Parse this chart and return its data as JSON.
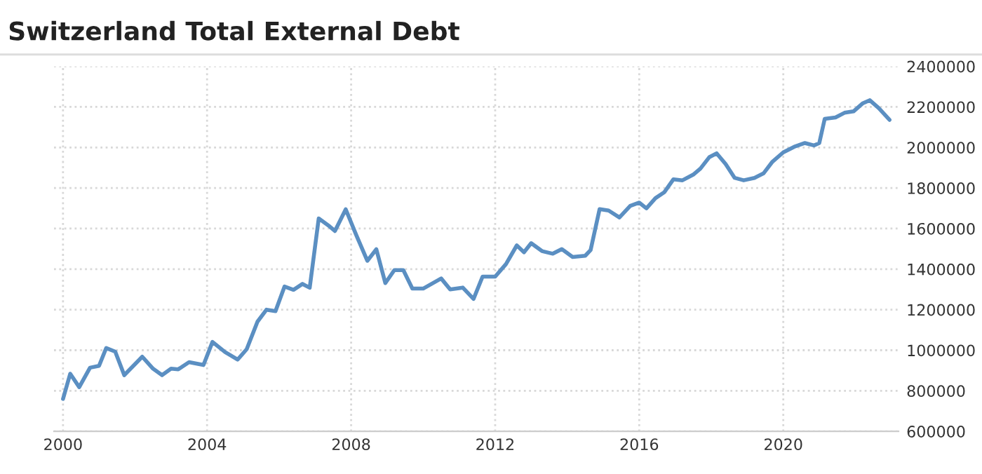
{
  "chart_data": {
    "type": "line",
    "title": "Switzerland Total External Debt",
    "x": [
      2000.0,
      2000.2,
      2000.45,
      2000.75,
      2001.0,
      2001.2,
      2001.45,
      2001.7,
      2002.2,
      2002.5,
      2002.75,
      2003.0,
      2003.2,
      2003.5,
      2003.9,
      2004.15,
      2004.5,
      2004.85,
      2005.1,
      2005.4,
      2005.65,
      2005.9,
      2006.15,
      2006.4,
      2006.65,
      2006.85,
      2007.1,
      2007.4,
      2007.55,
      2007.85,
      2008.15,
      2008.45,
      2008.7,
      2008.95,
      2009.2,
      2009.45,
      2009.7,
      2010.0,
      2010.5,
      2010.75,
      2011.1,
      2011.4,
      2011.65,
      2012.0,
      2012.3,
      2012.6,
      2012.8,
      2013.0,
      2013.3,
      2013.6,
      2013.85,
      2014.15,
      2014.5,
      2014.65,
      2014.9,
      2015.15,
      2015.45,
      2015.75,
      2016.0,
      2016.2,
      2016.45,
      2016.7,
      2016.95,
      2017.2,
      2017.5,
      2017.7,
      2017.95,
      2018.15,
      2018.4,
      2018.65,
      2018.9,
      2019.2,
      2019.45,
      2019.7,
      2020.0,
      2020.3,
      2020.6,
      2020.85,
      2021.0,
      2021.15,
      2021.45,
      2021.7,
      2021.95,
      2022.2,
      2022.4,
      2022.65,
      2022.95
    ],
    "series": [
      {
        "color": "#5b8fc2",
        "values": [
          760000,
          884000,
          818000,
          914000,
          923000,
          1011000,
          993000,
          877000,
          968000,
          909000,
          877000,
          909000,
          906000,
          941000,
          927000,
          1041000,
          991000,
          954000,
          1005000,
          1141000,
          1200000,
          1193000,
          1314000,
          1298000,
          1327000,
          1308000,
          1650000,
          1611000,
          1588000,
          1695000,
          1565000,
          1441000,
          1498000,
          1331000,
          1395000,
          1395000,
          1304000,
          1304000,
          1354000,
          1300000,
          1309000,
          1253000,
          1363000,
          1363000,
          1425000,
          1517000,
          1483000,
          1528000,
          1489000,
          1476000,
          1499000,
          1460000,
          1466000,
          1494000,
          1696000,
          1689000,
          1655000,
          1712000,
          1728000,
          1700000,
          1750000,
          1780000,
          1843000,
          1838000,
          1866000,
          1896000,
          1953000,
          1971000,
          1918000,
          1850000,
          1838000,
          1850000,
          1872000,
          1930000,
          1976000,
          2003000,
          2022000,
          2010000,
          2022000,
          2141000,
          2148000,
          2171000,
          2178000,
          2217000,
          2233000,
          2194000,
          2136000
        ]
      }
    ],
    "xlim": [
      1999.75,
      2023.2
    ],
    "xticks": [
      2000,
      2004,
      2008,
      2012,
      2016,
      2020
    ],
    "ylim": [
      600000,
      2400000
    ],
    "yticks": [
      600000,
      800000,
      1000000,
      1200000,
      1400000,
      1600000,
      1800000,
      2000000,
      2200000,
      2400000
    ],
    "grid": true,
    "marker": "none",
    "line_style": "solid"
  }
}
